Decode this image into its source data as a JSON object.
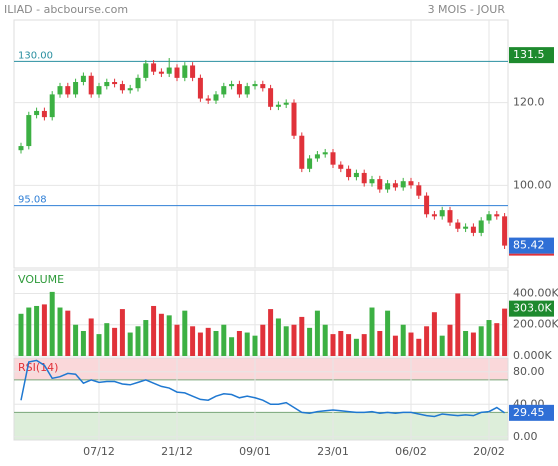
{
  "chart_data": [
    {
      "type": "candlestick",
      "title": "ILIAD - abcbourse.com",
      "subtitle": "3 MOIS - JOUR",
      "categories": [
        null,
        null,
        null,
        null,
        null,
        null,
        null,
        null,
        null,
        null,
        "07/12",
        null,
        null,
        null,
        null,
        null,
        null,
        null,
        null,
        null,
        "21/12",
        null,
        null,
        null,
        null,
        null,
        null,
        null,
        null,
        null,
        "09/01",
        null,
        null,
        null,
        null,
        null,
        null,
        null,
        null,
        null,
        "23/01",
        null,
        null,
        null,
        null,
        null,
        null,
        null,
        null,
        null,
        "06/02",
        null,
        null,
        null,
        null,
        null,
        null,
        null,
        null,
        null,
        "20/02",
        null,
        null
      ],
      "open": [
        108.5,
        109.5,
        117,
        118,
        116.5,
        122,
        124,
        122,
        125,
        126.5,
        122,
        124,
        125,
        124.5,
        123,
        123.5,
        126,
        129.5,
        127.5,
        127,
        128.5,
        126,
        129,
        126,
        121,
        120.5,
        122,
        124,
        124.5,
        122,
        124,
        124.5,
        123.5,
        119,
        119.5,
        120,
        112,
        104,
        106.5,
        107.5,
        108,
        105,
        104,
        102,
        103,
        100.5,
        101.5,
        99,
        100.5,
        99.5,
        101,
        100,
        97.5,
        93,
        92.5,
        94,
        91,
        89.5,
        90,
        88.5,
        91.5,
        93,
        92.5
      ],
      "high": [
        110.3,
        117.8,
        118.8,
        118.8,
        122.8,
        124.8,
        124.8,
        125.8,
        127.3,
        127.3,
        124.8,
        125.8,
        125.8,
        125.3,
        124.3,
        126.8,
        130.3,
        130.3,
        128.3,
        130.8,
        129.3,
        129.8,
        129.8,
        126.8,
        121.8,
        122.8,
        124.8,
        125.3,
        125.3,
        124.8,
        125.3,
        125.3,
        124.3,
        120.3,
        120.8,
        120.8,
        112.8,
        107.3,
        108.3,
        108.8,
        108.8,
        105.8,
        104.8,
        103.8,
        103.8,
        102.3,
        102.3,
        101.3,
        101.3,
        101.8,
        101.8,
        100.8,
        98.3,
        93.8,
        94.8,
        94.8,
        91.8,
        90.8,
        90.8,
        92.3,
        93.8,
        93.8,
        93.3
      ],
      "low": [
        107.7,
        108.7,
        116.2,
        115.7,
        115.7,
        121.2,
        121.2,
        121.2,
        124.2,
        121.2,
        121.2,
        123.2,
        123.7,
        122.2,
        122.2,
        122.7,
        125.2,
        126.7,
        126.2,
        126.2,
        125.2,
        125.2,
        125.2,
        120.2,
        119.7,
        119.7,
        121.2,
        123.2,
        121.2,
        121.2,
        123.2,
        122.7,
        118.2,
        118.2,
        118.7,
        111.2,
        103.2,
        103.2,
        105.7,
        106.7,
        104.2,
        103.2,
        101.2,
        101.2,
        99.7,
        99.7,
        98.2,
        98.2,
        98.7,
        98.7,
        99.2,
        96.7,
        92.2,
        91.7,
        91.7,
        90.2,
        88.7,
        88.7,
        87.7,
        87.7,
        90.7,
        91.7,
        84.6
      ],
      "close": [
        109.5,
        117,
        118,
        116.5,
        122,
        124,
        122,
        125,
        126.5,
        122,
        124,
        125,
        124.5,
        123,
        123.5,
        126,
        129.5,
        127.5,
        127,
        128.5,
        126,
        129,
        126,
        121,
        120.5,
        122,
        124,
        124.5,
        122,
        124,
        124.5,
        123.5,
        119,
        119.5,
        120,
        112,
        104,
        106.5,
        107.5,
        108,
        105,
        104,
        102,
        103,
        100.5,
        101.5,
        99,
        100.5,
        99.5,
        101,
        100,
        97.5,
        93,
        92.5,
        94,
        91,
        89.5,
        90,
        88.5,
        91.5,
        93,
        92.5,
        85.42
      ],
      "up_color": "#3cb043",
      "down_color": "#e0323a",
      "ylim": [
        80,
        140
      ],
      "yticks": [
        {
          "value": 120,
          "label": "120.0"
        },
        {
          "value": 100,
          "label": "100.00"
        }
      ],
      "grid": true,
      "hlines": [
        {
          "value": 130,
          "label": "130.00",
          "color": "#2a8fa0"
        },
        {
          "value": 95.08,
          "label": "95.08",
          "color": "#2f7fd6"
        }
      ],
      "tags": [
        {
          "value": 131.5,
          "label": "131.5",
          "color": "#1e8a2e"
        }
      ],
      "last_tag_color": "#2f6fd6"
    },
    {
      "type": "bar",
      "title": "VOLUME",
      "values": [
        270000,
        310000,
        320000,
        330000,
        410000,
        310000,
        290000,
        200000,
        160000,
        240000,
        140000,
        210000,
        180000,
        300000,
        150000,
        190000,
        230000,
        320000,
        270000,
        260000,
        200000,
        290000,
        190000,
        150000,
        180000,
        160000,
        200000,
        120000,
        160000,
        150000,
        130000,
        200000,
        300000,
        240000,
        190000,
        200000,
        250000,
        180000,
        290000,
        200000,
        140000,
        160000,
        140000,
        110000,
        140000,
        310000,
        160000,
        290000,
        130000,
        200000,
        150000,
        110000,
        190000,
        280000,
        130000,
        200000,
        400000,
        160000,
        150000,
        190000,
        230000,
        210000,
        303000
      ],
      "ylim": [
        0,
        550000
      ],
      "yticks": [
        {
          "value": 400000,
          "label": "400.00K"
        },
        {
          "value": 200000,
          "label": "200.00K"
        },
        {
          "value": 0,
          "label": "0.000K"
        }
      ],
      "grid": true,
      "tags": [
        {
          "value": 303000,
          "label": "303.0K",
          "color": "#1e8a2e"
        }
      ]
    },
    {
      "type": "line",
      "title": "RSI(14)",
      "values": [
        45,
        92,
        94,
        88,
        72,
        74,
        78,
        77,
        66,
        70,
        67,
        68,
        68,
        65,
        64,
        67,
        70,
        66,
        62,
        60,
        55,
        54,
        50,
        46,
        45,
        50,
        53,
        52,
        48,
        50,
        48,
        45,
        40,
        40,
        42,
        36,
        30,
        29,
        31,
        32,
        33,
        32,
        31,
        30,
        30,
        31,
        29,
        30,
        29,
        30,
        30,
        28,
        26,
        25,
        28,
        27,
        26,
        27,
        26,
        30,
        31,
        36,
        29.45
      ],
      "color": "#1f78d1",
      "ylim": [
        -4,
        97
      ],
      "yticks": [
        {
          "value": 80,
          "label": "80.00"
        },
        {
          "value": 40,
          "label": "40.00"
        },
        {
          "value": 0,
          "label": "0.00"
        }
      ],
      "grid": true,
      "bands": [
        {
          "from": 70,
          "to": 97,
          "color": "#f9d4d6"
        },
        {
          "from": -4,
          "to": 30,
          "color": "#d9ecd6"
        }
      ],
      "last_tag_color": "#2f6fd6"
    }
  ]
}
